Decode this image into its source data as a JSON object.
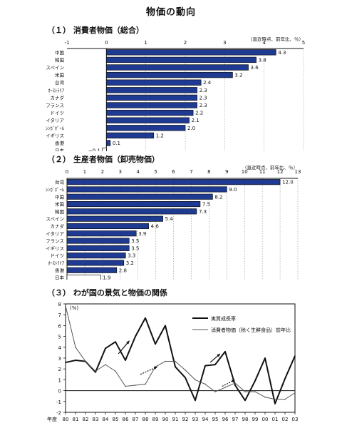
{
  "page": {
    "title": "物価の動向",
    "section1_title": "（１） 消費者物価（総合）",
    "section2_title": "（２） 生産者物価（卸売物価）",
    "section3_title": "（３） わが国の景気と物価の関係"
  },
  "colors": {
    "bar": "#1f3a93",
    "bar_light": "#ffffff",
    "axis": "#111111",
    "line_primary": "#111111",
    "line_secondary": "#555555"
  },
  "chart_data": [
    {
      "type": "bar",
      "orientation": "horizontal",
      "note": "（直近時点、前年比、％）",
      "xlim": [
        -1,
        5
      ],
      "ticks": [
        -1,
        0,
        1,
        2,
        3,
        4,
        5
      ],
      "categories": [
        "中国",
        "韓国",
        "スペイン",
        "米国",
        "台湾",
        "ｵｰｽﾄﾗﾘｱ",
        "カナダ",
        "フランス",
        "ドイツ",
        "イタリア",
        "ｼﾝｶﾞﾎﾟｰﾙ",
        "イギリス",
        "香港",
        "日本"
      ],
      "values": [
        4.3,
        3.8,
        3.6,
        3.2,
        2.4,
        2.3,
        2.3,
        2.3,
        2.2,
        2.1,
        2.0,
        1.2,
        0.1,
        -0.1
      ],
      "labels": [
        "4.3",
        "3.8",
        "3.6",
        "3.2",
        "2.4",
        "2.3",
        "2.3",
        "2.3",
        "2.2",
        "2.1",
        "2.0",
        "1.2",
        "0.1",
        "−0.1"
      ],
      "highlight": "日本"
    },
    {
      "type": "bar",
      "orientation": "horizontal",
      "note": "（直近時点、前年比、％）",
      "xlim": [
        0,
        13
      ],
      "ticks": [
        0,
        1,
        2,
        3,
        4,
        5,
        6,
        7,
        8,
        9,
        10,
        11,
        12,
        13
      ],
      "categories": [
        "台湾",
        "ｼﾝｶﾞﾎﾟｰﾙ",
        "中国",
        "米国",
        "韓国",
        "スペイン",
        "カナダ",
        "イタリア",
        "フランス",
        "イギリス",
        "ドイツ",
        "ｵｰｽﾄﾗﾘｱ",
        "香港",
        "日本"
      ],
      "values": [
        12.0,
        9.0,
        8.2,
        7.5,
        7.3,
        5.4,
        4.6,
        3.9,
        3.5,
        3.5,
        3.3,
        3.2,
        2.8,
        1.9
      ],
      "labels": [
        "12.0",
        "9.0",
        "8.2",
        "7.5",
        "7.3",
        "5.4",
        "4.6",
        "3.9",
        "3.5",
        "3.5",
        "3.3",
        "3.2",
        "2.8",
        "1.9"
      ],
      "highlight": "日本"
    },
    {
      "type": "line",
      "ylabel": "(%)",
      "xlabel": "年度",
      "ylim": [
        -2,
        8
      ],
      "yticks": [
        -2,
        -1,
        0,
        1,
        2,
        3,
        4,
        5,
        6,
        7,
        8
      ],
      "x": [
        "80",
        "81",
        "82",
        "83",
        "84",
        "85",
        "86",
        "87",
        "88",
        "89",
        "90",
        "91",
        "92",
        "93",
        "94",
        "95",
        "96",
        "97",
        "98",
        "99",
        "00",
        "01",
        "02",
        "03"
      ],
      "series": [
        {
          "name": "実質成長率",
          "values": [
            2.6,
            2.8,
            2.7,
            1.7,
            3.9,
            4.5,
            2.8,
            5.0,
            6.7,
            4.3,
            6.0,
            2.2,
            1.2,
            -0.9,
            2.3,
            2.4,
            3.6,
            0.5,
            -0.9,
            0.9,
            3.0,
            -1.2,
            1.1,
            3.2
          ]
        },
        {
          "name": "消費者物価（除く生鮮食品）前年比",
          "values": [
            7.8,
            4.0,
            2.7,
            1.8,
            2.4,
            1.8,
            0.4,
            0.5,
            0.6,
            2.2,
            2.7,
            2.7,
            1.9,
            1.0,
            0.6,
            -0.1,
            0.3,
            0.7,
            -0.1,
            -0.1,
            -0.6,
            -0.8,
            -0.8,
            -0.2
          ]
        }
      ]
    }
  ]
}
